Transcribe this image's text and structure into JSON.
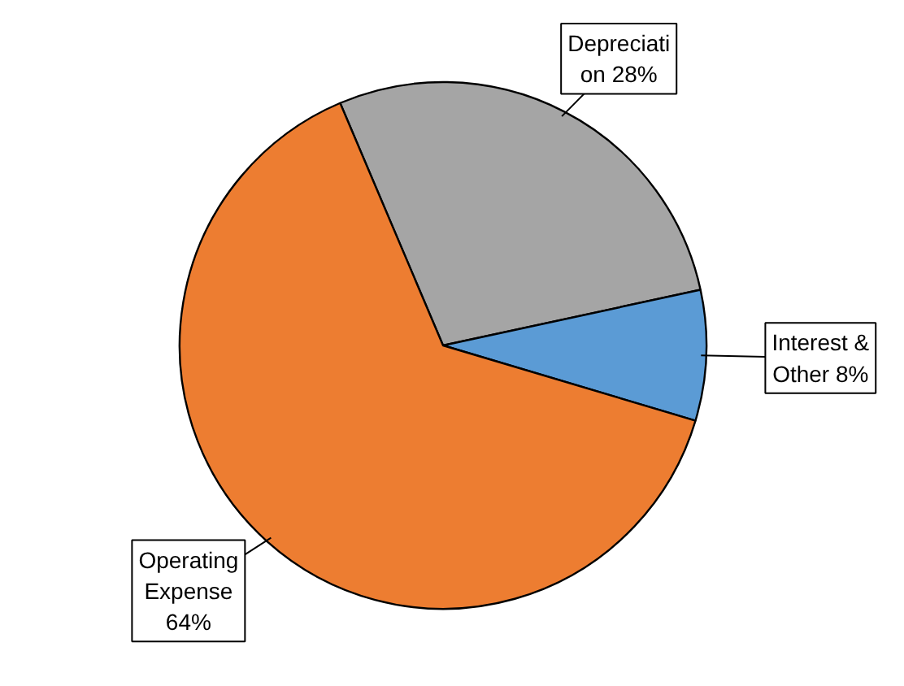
{
  "chart_data": {
    "type": "pie",
    "categories": [
      "Depreciation",
      "Interest & Other",
      "Operating Expense"
    ],
    "values": [
      28,
      8,
      64
    ],
    "value_labels": [
      "28%",
      "8%",
      "64%"
    ],
    "colors": [
      "#a5a5a5",
      "#5b9bd5",
      "#ed7d31"
    ]
  }
}
